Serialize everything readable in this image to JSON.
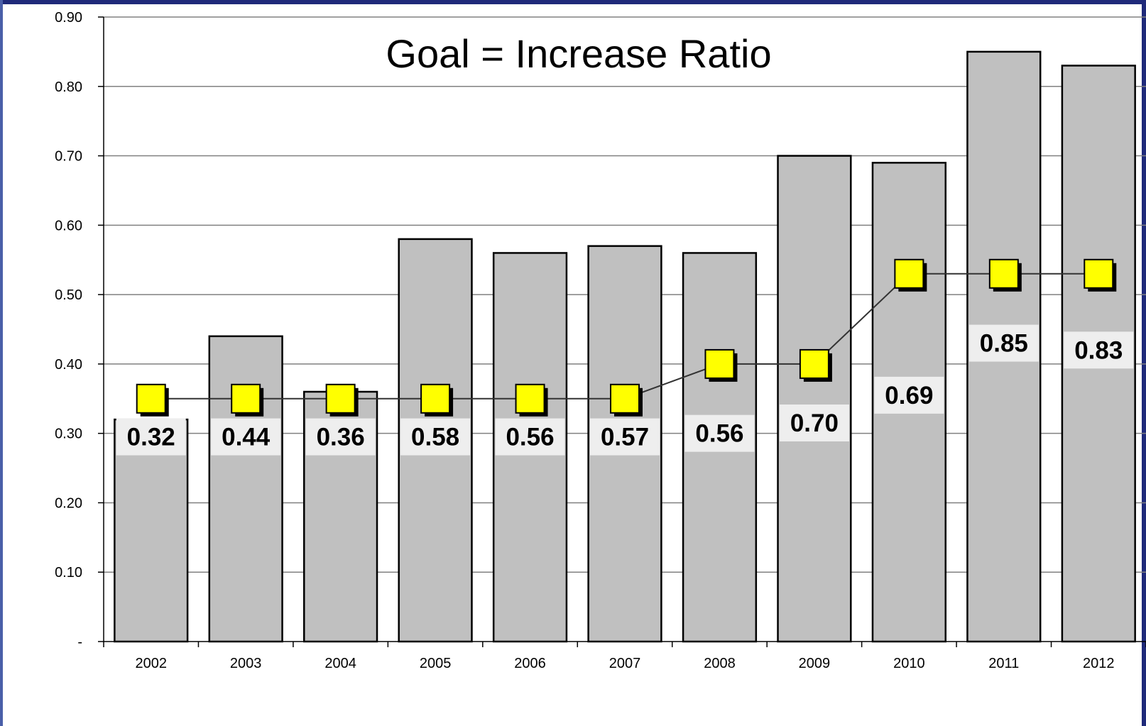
{
  "colors": {
    "bar_fill": "#c0c0c0",
    "bar_stroke": "#000000",
    "marker_fill": "#ffff00",
    "marker_stroke": "#000000",
    "line": "#333333",
    "grid": "#808080",
    "label_background": "#eeeeee",
    "frame": "#1f2a7a"
  },
  "chart_data": {
    "type": "bar",
    "title": "Goal = Increase Ratio",
    "xlabel": "",
    "ylabel": "",
    "categories": [
      "2002",
      "2003",
      "2004",
      "2005",
      "2006",
      "2007",
      "2008",
      "2009",
      "2010",
      "2011",
      "2012"
    ],
    "series": [
      {
        "type": "bar",
        "values": [
          0.32,
          0.44,
          0.36,
          0.58,
          0.56,
          0.57,
          0.56,
          0.7,
          0.69,
          0.85,
          0.83
        ],
        "labels": [
          "0.32",
          "0.44",
          "0.36",
          "0.58",
          "0.56",
          "0.57",
          "0.56",
          "0.70",
          "0.69",
          "0.85",
          "0.83"
        ]
      },
      {
        "type": "line",
        "marker": "square",
        "values": [
          0.35,
          0.35,
          0.35,
          0.35,
          0.35,
          0.35,
          0.4,
          0.4,
          0.53,
          0.53,
          0.53
        ]
      }
    ],
    "ylim": [
      0,
      0.9
    ],
    "yticks": [
      0,
      0.1,
      0.2,
      0.3,
      0.4,
      0.5,
      0.6,
      0.7,
      0.8,
      0.9
    ],
    "ytick_labels": [
      "-",
      "0.10",
      "0.20",
      "0.30",
      "0.40",
      "0.50",
      "0.60",
      "0.70",
      "0.80",
      "0.90"
    ],
    "grid": true,
    "legend": "none"
  }
}
